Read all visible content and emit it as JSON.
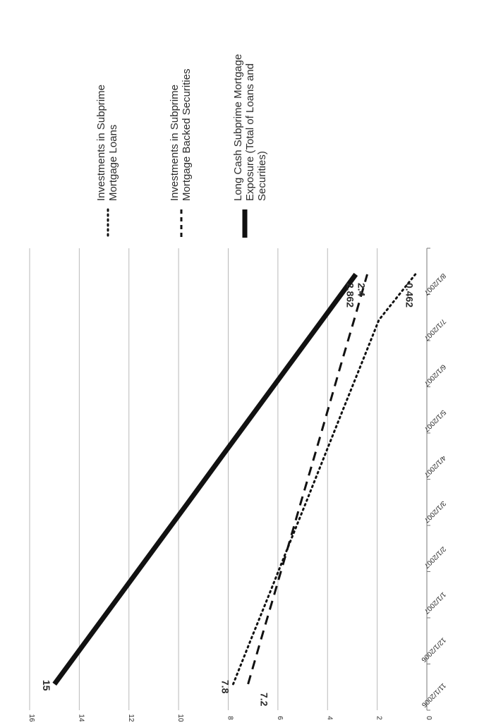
{
  "chart_data": {
    "type": "line",
    "orientation": "rotated-90-clockwise",
    "categories": [
      "11/1/2006",
      "12/1/2006",
      "1/1/2007",
      "2/1/2007",
      "3/1/2007",
      "4/1/2007",
      "5/1/2007",
      "6/1/2007",
      "7/1/2007",
      "8/1/2007"
    ],
    "ylim": [
      0,
      16
    ],
    "yticks": [
      0,
      2,
      4,
      6,
      8,
      10,
      12,
      14,
      16
    ],
    "grid": true,
    "legend_position": "right",
    "series": [
      {
        "name": "Investments in Subprime Mortgage Loans",
        "style": "dotted",
        "color": "#111111",
        "values": [
          7.8,
          7.07,
          6.33,
          5.6,
          4.86,
          4.13,
          3.4,
          2.66,
          1.93,
          0.462
        ],
        "labels": [
          {
            "index": 0,
            "text": "7.8"
          },
          {
            "index": 9,
            "text": "0.462"
          }
        ]
      },
      {
        "name": "Investments in Subprime Mortgage Backed Securities",
        "style": "dashed",
        "color": "#111111",
        "values": [
          7.2,
          6.67,
          6.13,
          5.6,
          5.07,
          4.53,
          4.0,
          3.47,
          2.93,
          2.4
        ],
        "labels": [
          {
            "index": 0,
            "text": "7.2"
          },
          {
            "index": 9,
            "text": "2.4"
          }
        ]
      },
      {
        "name": "Long Cash Subprime Mortgage Exposure (Total of Loans and Securities)",
        "style": "solid",
        "color": "#111111",
        "values": [
          15.0,
          13.65,
          12.3,
          10.95,
          9.6,
          8.26,
          6.91,
          5.56,
          4.21,
          2.862
        ],
        "labels": [
          {
            "index": 0,
            "text": "15"
          },
          {
            "index": 9,
            "text": "2.862"
          }
        ]
      }
    ],
    "legend": [
      {
        "lines": [
          "Investments in Subprime",
          "Mortgage Loans"
        ]
      },
      {
        "lines": [
          "Investments in Subprime",
          "Mortgage Backed Securities"
        ]
      },
      {
        "lines": [
          "Long Cash Subprime Mortgage",
          "Exposure (Total of Loans and",
          "Securities)"
        ]
      }
    ]
  }
}
